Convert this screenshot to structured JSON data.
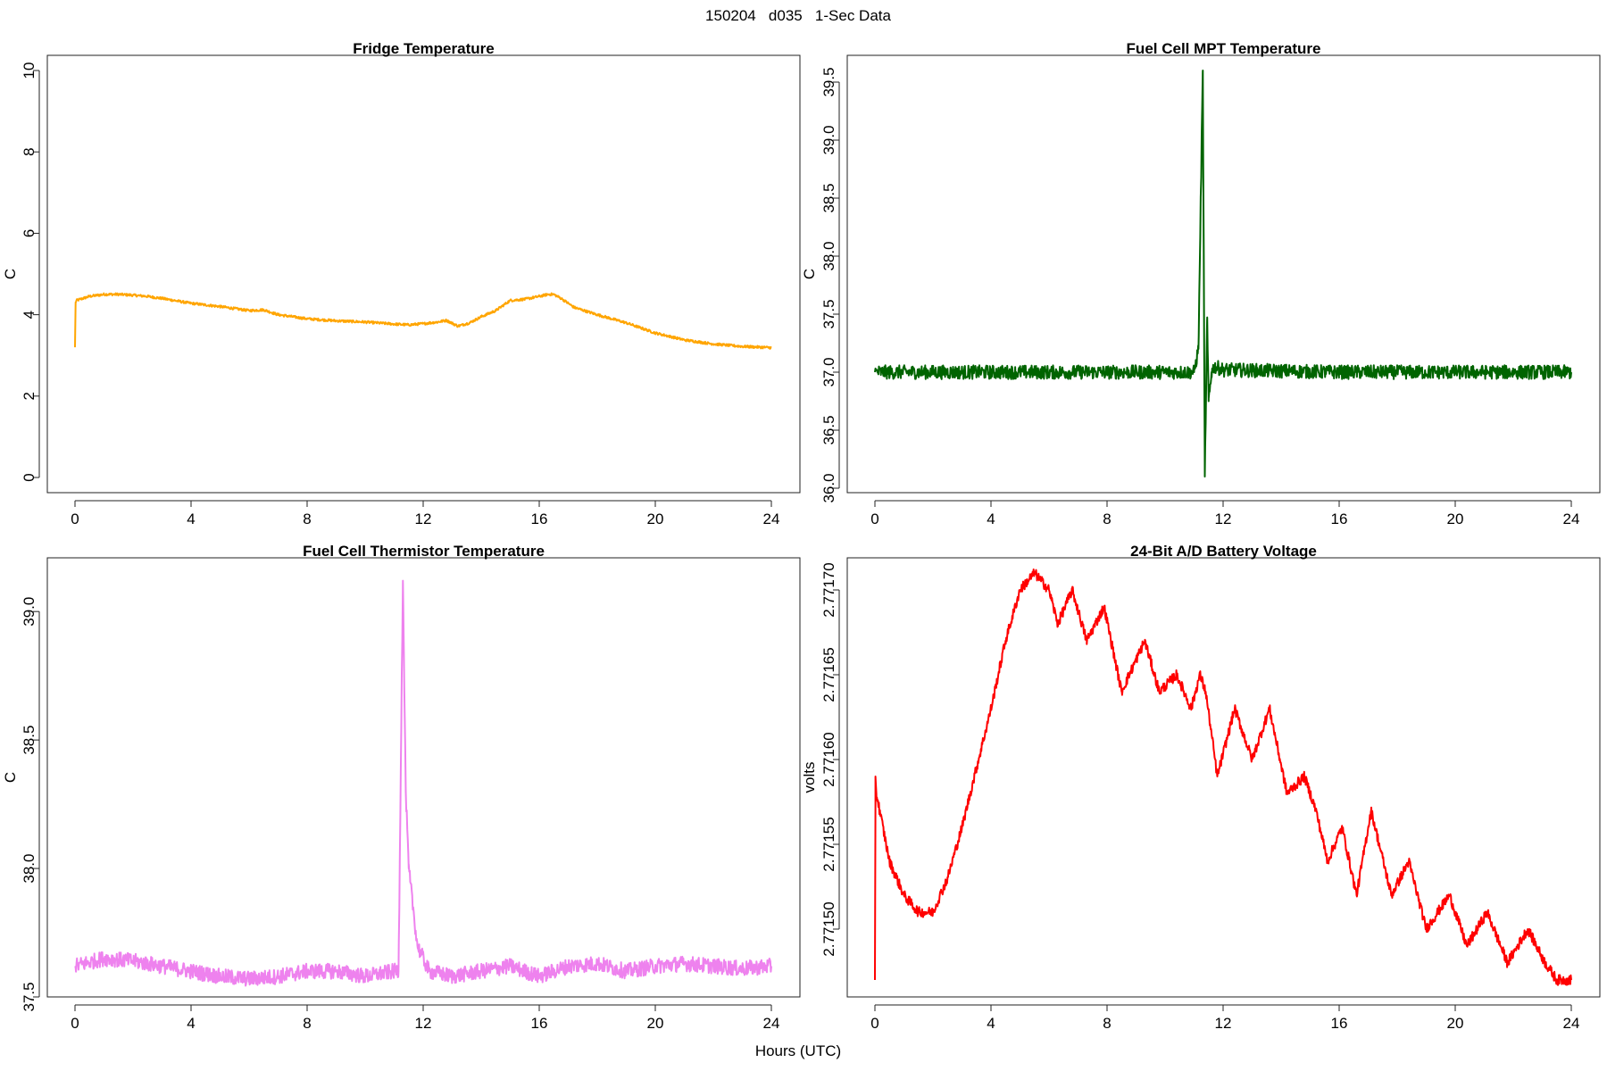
{
  "figure": {
    "suptitle": "150204   d035   1-Sec Data",
    "xlabel": "Hours (UTC)"
  },
  "chart_data": [
    {
      "type": "line",
      "title": "Fridge Temperature",
      "ylabel": "C",
      "xlim": [
        0,
        24
      ],
      "ylim": [
        0,
        10
      ],
      "xticks": [
        0,
        4,
        8,
        12,
        16,
        20,
        24
      ],
      "xtick_labels": [
        "0",
        "4",
        "8",
        "12",
        "16",
        "20",
        "24"
      ],
      "yticks": [
        0,
        2,
        4,
        6,
        8,
        10
      ],
      "ytick_labels": [
        "0",
        "2",
        "4",
        "6",
        "8",
        "10"
      ],
      "color": "#FFA500",
      "noise": 0.03,
      "series": [
        {
          "name": "Fridge Temperature",
          "x": [
            0,
            0.02,
            0.05,
            0.5,
            1,
            1.5,
            2,
            2.5,
            3,
            4,
            5,
            6,
            6.5,
            7,
            8,
            9,
            10,
            11,
            11.5,
            12,
            12.5,
            12.8,
            13.2,
            13.6,
            14,
            14.5,
            15,
            15.5,
            16,
            16.3,
            16.5,
            16.8,
            17.2,
            18,
            19,
            20,
            21,
            22,
            23,
            24
          ],
          "y": [
            3.2,
            4.3,
            4.35,
            4.45,
            4.5,
            4.5,
            4.48,
            4.45,
            4.4,
            4.28,
            4.2,
            4.1,
            4.12,
            4.0,
            3.9,
            3.85,
            3.82,
            3.77,
            3.75,
            3.78,
            3.82,
            3.86,
            3.72,
            3.8,
            3.95,
            4.1,
            4.35,
            4.38,
            4.45,
            4.5,
            4.5,
            4.38,
            4.18,
            4.0,
            3.8,
            3.55,
            3.38,
            3.28,
            3.22,
            3.19
          ]
        }
      ]
    },
    {
      "type": "line",
      "title": "Fuel Cell MPT Temperature",
      "ylabel": "C",
      "xlim": [
        0,
        24
      ],
      "ylim": [
        36.0,
        39.6
      ],
      "xticks": [
        0,
        4,
        8,
        12,
        16,
        20,
        24
      ],
      "xtick_labels": [
        "0",
        "4",
        "8",
        "12",
        "16",
        "20",
        "24"
      ],
      "yticks": [
        36.0,
        36.5,
        37.0,
        37.5,
        38.0,
        38.5,
        39.0,
        39.5
      ],
      "ytick_labels": [
        "36.0",
        "36.5",
        "37.0",
        "37.5",
        "38.0",
        "38.5",
        "39.0",
        "39.5"
      ],
      "color": "#006400",
      "noise": 0.06,
      "series": [
        {
          "name": "Fuel Cell MPT Temperature",
          "x": [
            0,
            5,
            10,
            11.0,
            11.15,
            11.3,
            11.37,
            11.45,
            11.5,
            11.6,
            11.7,
            12,
            16,
            20,
            24
          ],
          "y": [
            37.0,
            37.0,
            37.0,
            37.0,
            37.2,
            39.6,
            36.1,
            37.45,
            36.75,
            37.0,
            37.05,
            37.02,
            37.0,
            37.0,
            37.0
          ]
        }
      ]
    },
    {
      "type": "line",
      "title": "Fuel Cell Thermistor Temperature",
      "ylabel": "C",
      "xlim": [
        0,
        24
      ],
      "ylim": [
        37.5,
        39.15
      ],
      "xticks": [
        0,
        4,
        8,
        12,
        16,
        20,
        24
      ],
      "xtick_labels": [
        "0",
        "4",
        "8",
        "12",
        "16",
        "20",
        "24"
      ],
      "yticks": [
        37.5,
        38.0,
        38.5,
        39.0
      ],
      "ytick_labels": [
        "37.5",
        "38.0",
        "38.5",
        "39.0"
      ],
      "color": "#EE82EE",
      "noise": 0.03,
      "series": [
        {
          "name": "Fuel Cell Thermistor Temperature",
          "x": [
            0,
            1,
            2,
            3,
            4,
            5,
            6,
            7,
            8,
            9,
            10,
            11,
            11.15,
            11.3,
            11.4,
            11.5,
            11.8,
            12.2,
            13,
            14,
            15,
            16,
            17,
            18,
            19,
            20,
            21,
            22,
            23,
            24
          ],
          "y": [
            37.62,
            37.65,
            37.64,
            37.62,
            37.6,
            37.58,
            37.57,
            37.58,
            37.6,
            37.6,
            37.58,
            37.6,
            37.6,
            39.12,
            38.3,
            38.0,
            37.7,
            37.6,
            37.58,
            37.6,
            37.62,
            37.58,
            37.62,
            37.63,
            37.6,
            37.62,
            37.63,
            37.62,
            37.61,
            37.62
          ]
        }
      ]
    },
    {
      "type": "line",
      "title": "24-Bit A/D Battery Voltage",
      "ylabel": "volts",
      "xlim": [
        0,
        24
      ],
      "ylim": [
        2.77146,
        2.77171
      ],
      "xticks": [
        0,
        4,
        8,
        12,
        16,
        20,
        24
      ],
      "xtick_labels": [
        "0",
        "4",
        "8",
        "12",
        "16",
        "20",
        "24"
      ],
      "yticks": [
        2.7715,
        2.77155,
        2.7716,
        2.77165,
        2.7717
      ],
      "ytick_labels": [
        "2.77150",
        "2.77155",
        "2.77160",
        "2.77165",
        "2.77170"
      ],
      "color": "#FF0000",
      "noise": 3e-06,
      "series": [
        {
          "name": "24-Bit A/D Battery Voltage",
          "x": [
            0,
            0.02,
            0.05,
            0.5,
            1,
            1.5,
            2,
            2.5,
            3,
            4,
            4.5,
            5,
            5.5,
            6,
            6.3,
            6.8,
            7.3,
            7.9,
            8.5,
            9.3,
            9.8,
            10.4,
            10.9,
            11.2,
            11.4,
            11.8,
            12.4,
            13,
            13.6,
            14.2,
            14.8,
            15.2,
            15.6,
            16.1,
            16.6,
            17.1,
            17.8,
            18.4,
            19,
            19.8,
            20.4,
            21.1,
            21.8,
            22.5,
            23.1,
            23.5,
            24
          ],
          "y": [
            2.77147,
            2.77159,
            2.77158,
            2.77154,
            2.77152,
            2.77151,
            2.77151,
            2.77153,
            2.77156,
            2.77163,
            2.77167,
            2.7717,
            2.77171,
            2.7717,
            2.77168,
            2.7717,
            2.77167,
            2.77169,
            2.77164,
            2.77167,
            2.77164,
            2.77165,
            2.77163,
            2.77165,
            2.77164,
            2.77159,
            2.77163,
            2.7716,
            2.77163,
            2.77158,
            2.77159,
            2.77157,
            2.77154,
            2.77156,
            2.77152,
            2.77157,
            2.77152,
            2.77154,
            2.7715,
            2.77152,
            2.77149,
            2.77151,
            2.77148,
            2.7715,
            2.77148,
            2.77147,
            2.77147
          ]
        }
      ]
    }
  ]
}
